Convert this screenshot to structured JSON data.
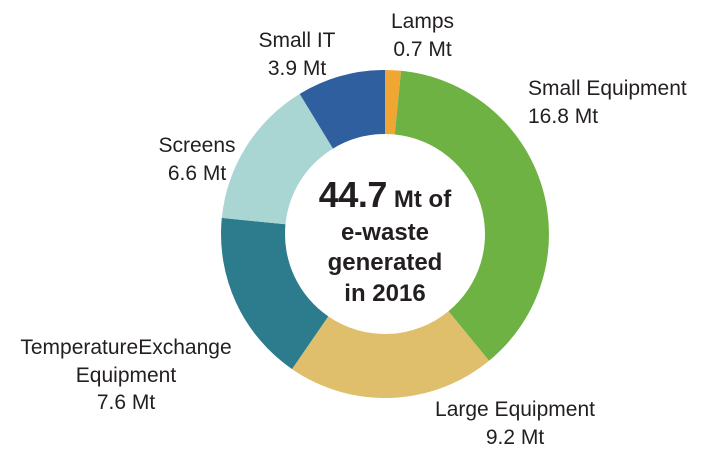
{
  "chart_data": {
    "type": "pie",
    "donut": true,
    "title": "",
    "legend": "none",
    "unit": "Mt",
    "start_angle_deg": -90,
    "direction": "clockwise",
    "total_value": 44.7,
    "center_text": {
      "big": "44.7",
      "after_big": "Mt of",
      "line2": "e-waste",
      "line3": "generated",
      "line4": "in 2016"
    },
    "segments": [
      {
        "id": "lamps",
        "name": "Lamps",
        "value": 0.7,
        "display": "0.7 Mt",
        "color": "#EFA633"
      },
      {
        "id": "small-equipment",
        "name": "Small Equipment",
        "value": 16.8,
        "display": "16.8 Mt",
        "color": "#6EB244"
      },
      {
        "id": "large-equipment",
        "name": "Large Equipment",
        "value": 9.2,
        "display": "9.2 Mt",
        "color": "#DFBF6B"
      },
      {
        "id": "temperature-exchange-equipment",
        "name": "TemperatureExchange Equipment",
        "name_line1": "TemperatureExchange",
        "name_line2": "Equipment",
        "value": 7.6,
        "display": "7.6 Mt",
        "color": "#2C7C8E"
      },
      {
        "id": "screens",
        "name": "Screens",
        "value": 6.6,
        "display": "6.6 Mt",
        "color": "#A9D5D3"
      },
      {
        "id": "small-it",
        "name": "Small IT",
        "value": 3.9,
        "display": "3.9 Mt",
        "color": "#2F5F9E"
      }
    ]
  },
  "colors": {
    "text": "#231F20",
    "background": "#FFFFFF"
  }
}
